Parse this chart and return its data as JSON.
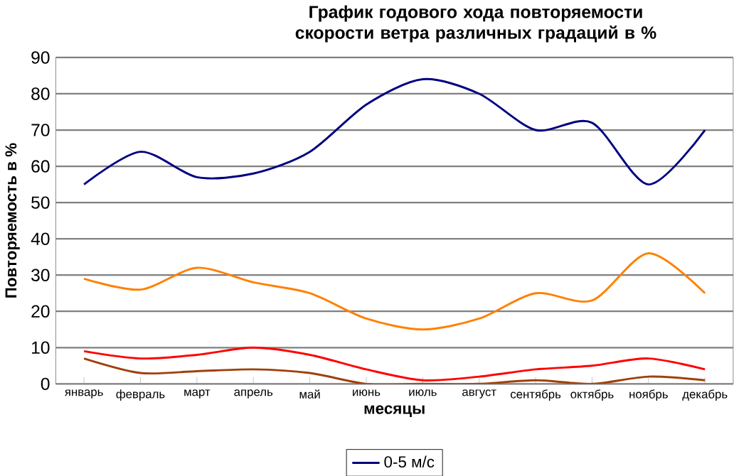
{
  "chart_data": {
    "type": "line",
    "title": "График годового хода повторяемости скорости ветра различных градаций в %",
    "xlabel": "месяцы",
    "ylabel": "Повторяемость в %",
    "categories": [
      "январь",
      "февраль",
      "март",
      "апрель",
      "май",
      "июнь",
      "июль",
      "август",
      "сентябрь",
      "октябрь",
      "ноябрь",
      "декабрь"
    ],
    "series": [
      {
        "name": "0-5 м/с",
        "color": "#000080",
        "values": [
          55,
          64,
          57,
          58,
          64,
          77,
          84,
          80,
          70,
          72,
          55,
          70
        ]
      },
      {
        "color": "#ff8000",
        "values": [
          29,
          26,
          32,
          28,
          25,
          18,
          15,
          18,
          25,
          23,
          36,
          25
        ]
      },
      {
        "color": "#ff0000",
        "values": [
          9,
          7,
          8,
          10,
          8,
          4,
          1,
          2,
          4,
          5,
          7,
          4
        ]
      },
      {
        "color": "#a0400a",
        "values": [
          7,
          3,
          3.5,
          4,
          3,
          0,
          0,
          0,
          1,
          0,
          2,
          1
        ]
      }
    ],
    "ylim": [
      0,
      90
    ],
    "yticks": [
      0,
      10,
      20,
      30,
      40,
      50,
      60,
      70,
      80,
      90
    ],
    "grid": "y",
    "legend": "bottom",
    "marker": "none",
    "line_style": "solid"
  }
}
